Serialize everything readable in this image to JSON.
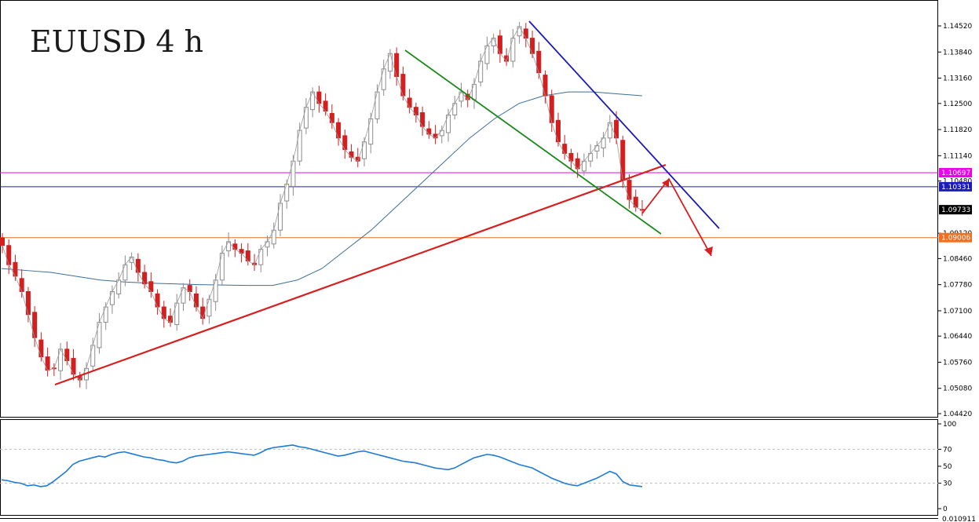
{
  "chart_data": [
    {
      "type": "candlestick",
      "title": "EUUSD 4 h",
      "xlabel": "",
      "ylabel": "",
      "ylim": [
        1.042,
        1.152
      ],
      "y_ticks": [
        "1.14520",
        "1.13840",
        "1.13160",
        "1.12500",
        "1.11820",
        "1.11140",
        "1.10480",
        "1.09120",
        "1.08460",
        "1.07780",
        "1.07100",
        "1.06440",
        "1.05760",
        "1.05080",
        "1.04420"
      ],
      "price_tags": [
        {
          "label": "1.10697",
          "value": 1.10697,
          "color": "#ee00ee",
          "kind": "horizontal-line"
        },
        {
          "label": "1.10331",
          "value": 1.10331,
          "color": "#1c1cb8",
          "kind": "horizontal-line"
        },
        {
          "label": "1.09733",
          "value": 1.09733,
          "color": "#000000",
          "kind": "current-price"
        },
        {
          "label": "1.09006",
          "value": 1.09006,
          "color": "#f07020",
          "kind": "horizontal-line"
        }
      ],
      "candle_colors": {
        "bull": "#8c8c8c",
        "bear": "#d21f1f"
      },
      "moving_average_color": "#3a6e9a",
      "zigzag_color": "#999999",
      "close_path": [
        1.088,
        1.083,
        1.08,
        1.076,
        1.07,
        1.064,
        1.059,
        1.0555,
        1.056,
        1.061,
        1.058,
        1.0545,
        1.053,
        1.056,
        1.062,
        1.068,
        1.072,
        1.076,
        1.079,
        1.083,
        1.085,
        1.081,
        1.078,
        1.076,
        1.072,
        1.069,
        1.068,
        1.073,
        1.077,
        1.076,
        1.072,
        1.069,
        1.074,
        1.079,
        1.086,
        1.089,
        1.087,
        1.086,
        1.084,
        1.083,
        1.087,
        1.089,
        1.092,
        1.099,
        1.104,
        1.11,
        1.118,
        1.124,
        1.128,
        1.125,
        1.123,
        1.12,
        1.116,
        1.113,
        1.111,
        1.11,
        1.115,
        1.121,
        1.128,
        1.134,
        1.138,
        1.132,
        1.127,
        1.124,
        1.122,
        1.119,
        1.117,
        1.116,
        1.118,
        1.122,
        1.125,
        1.128,
        1.126,
        1.13,
        1.136,
        1.14,
        1.142,
        1.138,
        1.136,
        1.142,
        1.145,
        1.142,
        1.138,
        1.133,
        1.127,
        1.12,
        1.115,
        1.112,
        1.11,
        1.108,
        1.11,
        1.112,
        1.114,
        1.116,
        1.12,
        1.116,
        1.105,
        1.1,
        1.098,
        1.0973
      ],
      "moving_average": [
        1.082,
        1.0815,
        1.081,
        1.08,
        1.079,
        1.0785,
        1.0782,
        1.078,
        1.0778,
        1.0777,
        1.0776,
        1.0776,
        1.079,
        1.082,
        1.087,
        1.092,
        1.098,
        1.104,
        1.11,
        1.116,
        1.121,
        1.125,
        1.127,
        1.128,
        1.128,
        1.1275,
        1.127
      ],
      "rsi_panel": {
        "ylim": [
          0,
          100
        ],
        "y_ticks": [
          "100",
          "70",
          "50",
          "30",
          "0"
        ],
        "levels": [
          70,
          30
        ],
        "color": "#1e7ad8",
        "values": [
          34,
          33,
          31,
          30,
          27,
          28,
          26,
          27,
          32,
          38,
          44,
          52,
          56,
          58,
          60,
          62,
          61,
          64,
          66,
          67,
          65,
          63,
          61,
          60,
          58,
          57,
          55,
          54,
          56,
          60,
          62,
          63,
          64,
          65,
          66,
          67,
          66,
          65,
          64,
          63,
          66,
          70,
          72,
          73,
          74,
          75,
          73,
          72,
          70,
          68,
          66,
          64,
          62,
          63,
          65,
          67,
          68,
          66,
          64,
          62,
          60,
          58,
          56,
          55,
          54,
          52,
          50,
          48,
          47,
          46,
          48,
          52,
          56,
          60,
          62,
          64,
          63,
          61,
          58,
          55,
          52,
          50,
          48,
          44,
          40,
          36,
          33,
          30,
          28,
          27,
          30,
          33,
          36,
          40,
          44,
          41,
          32,
          28,
          27,
          26
        ]
      },
      "bottom_tick": "0.010911"
    }
  ]
}
